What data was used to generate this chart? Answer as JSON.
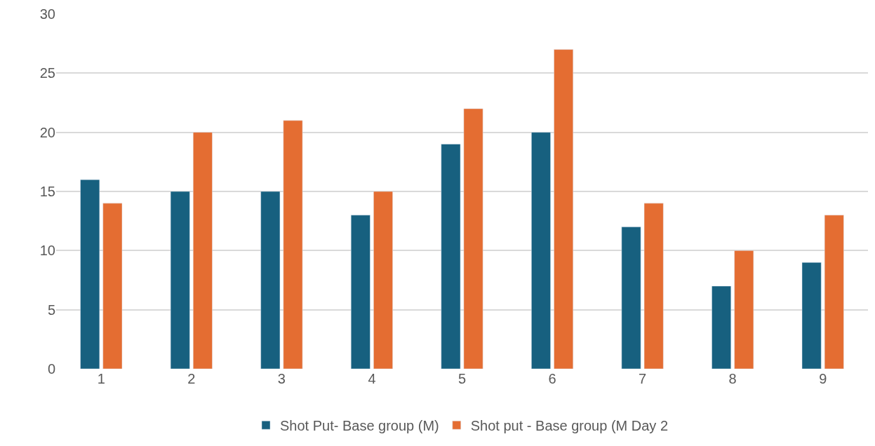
{
  "chart_data": {
    "type": "bar",
    "categories": [
      "1",
      "2",
      "3",
      "4",
      "5",
      "6",
      "7",
      "8",
      "9"
    ],
    "series": [
      {
        "name": "Shot Put- Base group (M)",
        "color": "#17607f",
        "values": [
          16,
          15,
          15,
          13,
          19,
          20,
          12,
          7,
          9
        ]
      },
      {
        "name": "Shot put - Base group (M Day 2",
        "color": "#e46d32",
        "values": [
          14,
          20,
          21,
          15,
          22,
          27,
          14,
          10,
          13
        ]
      }
    ],
    "ylim": [
      0,
      30
    ],
    "yticks": [
      0,
      5,
      10,
      15,
      20,
      25,
      30
    ],
    "grid": "y",
    "legend": "bottom"
  }
}
